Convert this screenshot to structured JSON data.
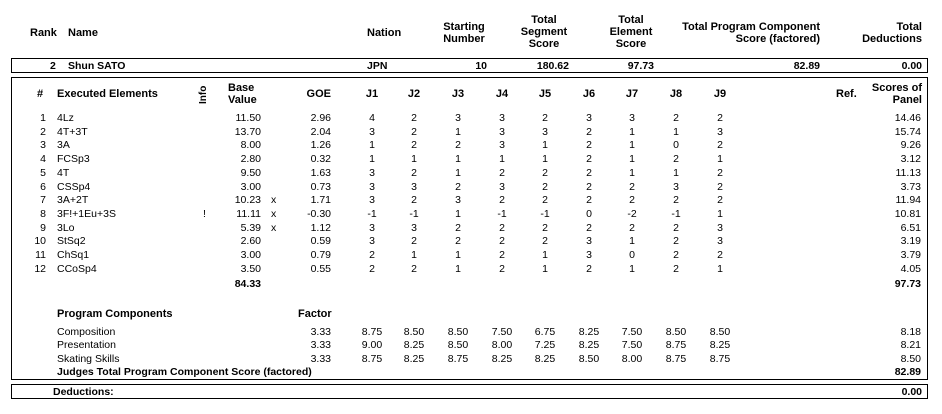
{
  "summary_header": {
    "rank": "Rank",
    "name": "Name",
    "nation": "Nation",
    "starting_number": [
      "Starting",
      "Number"
    ],
    "segment_score": [
      "Total",
      "Segment",
      "Score"
    ],
    "element_score": [
      "Total",
      "Element",
      "Score"
    ],
    "program_component": [
      "Total Program Component",
      "Score (factored)"
    ],
    "deductions": [
      "Total",
      "Deductions"
    ]
  },
  "skater": {
    "rank": "2",
    "name": "Shun SATO",
    "nation": "JPN",
    "starting_number": "10",
    "segment_score": "180.62",
    "element_score": "97.73",
    "program_component": "82.89",
    "deductions": "0.00"
  },
  "elements_header": {
    "num": "#",
    "executed": "Executed Elements",
    "info": "Info",
    "base": [
      "Base",
      "Value"
    ],
    "goe": "GOE",
    "judges": [
      "J1",
      "J2",
      "J3",
      "J4",
      "J5",
      "J6",
      "J7",
      "J8",
      "J9"
    ],
    "ref": "Ref.",
    "scores": [
      "Scores of",
      "Panel"
    ]
  },
  "elements": [
    {
      "num": "1",
      "name": "4Lz",
      "info": "",
      "base": "11.50",
      "x": "",
      "goe": "2.96",
      "j": [
        "4",
        "2",
        "3",
        "3",
        "2",
        "3",
        "3",
        "2",
        "2"
      ],
      "score": "14.46"
    },
    {
      "num": "2",
      "name": "4T+3T",
      "info": "",
      "base": "13.70",
      "x": "",
      "goe": "2.04",
      "j": [
        "3",
        "2",
        "1",
        "3",
        "3",
        "2",
        "1",
        "1",
        "3"
      ],
      "score": "15.74"
    },
    {
      "num": "3",
      "name": "3A",
      "info": "",
      "base": "8.00",
      "x": "",
      "goe": "1.26",
      "j": [
        "1",
        "2",
        "2",
        "3",
        "1",
        "2",
        "1",
        "0",
        "2"
      ],
      "score": "9.26"
    },
    {
      "num": "4",
      "name": "FCSp3",
      "info": "",
      "base": "2.80",
      "x": "",
      "goe": "0.32",
      "j": [
        "1",
        "1",
        "1",
        "1",
        "1",
        "2",
        "1",
        "2",
        "1"
      ],
      "score": "3.12"
    },
    {
      "num": "5",
      "name": "4T",
      "info": "",
      "base": "9.50",
      "x": "",
      "goe": "1.63",
      "j": [
        "3",
        "2",
        "1",
        "2",
        "2",
        "2",
        "1",
        "1",
        "2"
      ],
      "score": "11.13"
    },
    {
      "num": "6",
      "name": "CSSp4",
      "info": "",
      "base": "3.00",
      "x": "",
      "goe": "0.73",
      "j": [
        "3",
        "3",
        "2",
        "3",
        "2",
        "2",
        "2",
        "3",
        "2"
      ],
      "score": "3.73"
    },
    {
      "num": "7",
      "name": "3A+2T",
      "info": "",
      "base": "10.23",
      "x": "x",
      "goe": "1.71",
      "j": [
        "3",
        "2",
        "3",
        "2",
        "2",
        "2",
        "2",
        "2",
        "2"
      ],
      "score": "11.94"
    },
    {
      "num": "8",
      "name": "3F!+1Eu+3S",
      "info": "!",
      "base": "11.11",
      "x": "x",
      "goe": "-0.30",
      "j": [
        "-1",
        "-1",
        "1",
        "-1",
        "-1",
        "0",
        "-2",
        "-1",
        "1"
      ],
      "score": "10.81"
    },
    {
      "num": "9",
      "name": "3Lo",
      "info": "",
      "base": "5.39",
      "x": "x",
      "goe": "1.12",
      "j": [
        "3",
        "3",
        "2",
        "2",
        "2",
        "2",
        "2",
        "2",
        "3"
      ],
      "score": "6.51"
    },
    {
      "num": "10",
      "name": "StSq2",
      "info": "",
      "base": "2.60",
      "x": "",
      "goe": "0.59",
      "j": [
        "3",
        "2",
        "2",
        "2",
        "2",
        "3",
        "1",
        "2",
        "3"
      ],
      "score": "3.19"
    },
    {
      "num": "11",
      "name": "ChSq1",
      "info": "",
      "base": "3.00",
      "x": "",
      "goe": "0.79",
      "j": [
        "2",
        "1",
        "1",
        "2",
        "1",
        "3",
        "0",
        "2",
        "2"
      ],
      "score": "3.79"
    },
    {
      "num": "12",
      "name": "CCoSp4",
      "info": "",
      "base": "3.50",
      "x": "",
      "goe": "0.55",
      "j": [
        "2",
        "2",
        "1",
        "2",
        "1",
        "2",
        "1",
        "2",
        "1"
      ],
      "score": "4.05"
    }
  ],
  "elements_total": {
    "base": "84.33",
    "score": "97.73"
  },
  "components_header": {
    "title": "Program Components",
    "factor": "Factor"
  },
  "components": [
    {
      "name": "Composition",
      "factor": "3.33",
      "j": [
        "8.75",
        "8.50",
        "8.50",
        "7.50",
        "6.75",
        "8.25",
        "7.50",
        "8.50",
        "8.50"
      ],
      "score": "8.18"
    },
    {
      "name": "Presentation",
      "factor": "3.33",
      "j": [
        "9.00",
        "8.25",
        "8.50",
        "8.00",
        "7.25",
        "8.25",
        "7.50",
        "8.75",
        "8.25"
      ],
      "score": "8.21"
    },
    {
      "name": "Skating Skills",
      "factor": "3.33",
      "j": [
        "8.75",
        "8.25",
        "8.75",
        "8.25",
        "8.25",
        "8.50",
        "8.00",
        "8.75",
        "8.75"
      ],
      "score": "8.50"
    }
  ],
  "components_total": {
    "label": "Judges Total Program Component Score (factored)",
    "score": "82.89"
  },
  "deductions_footer": {
    "label": "Deductions:",
    "value": "0.00"
  }
}
